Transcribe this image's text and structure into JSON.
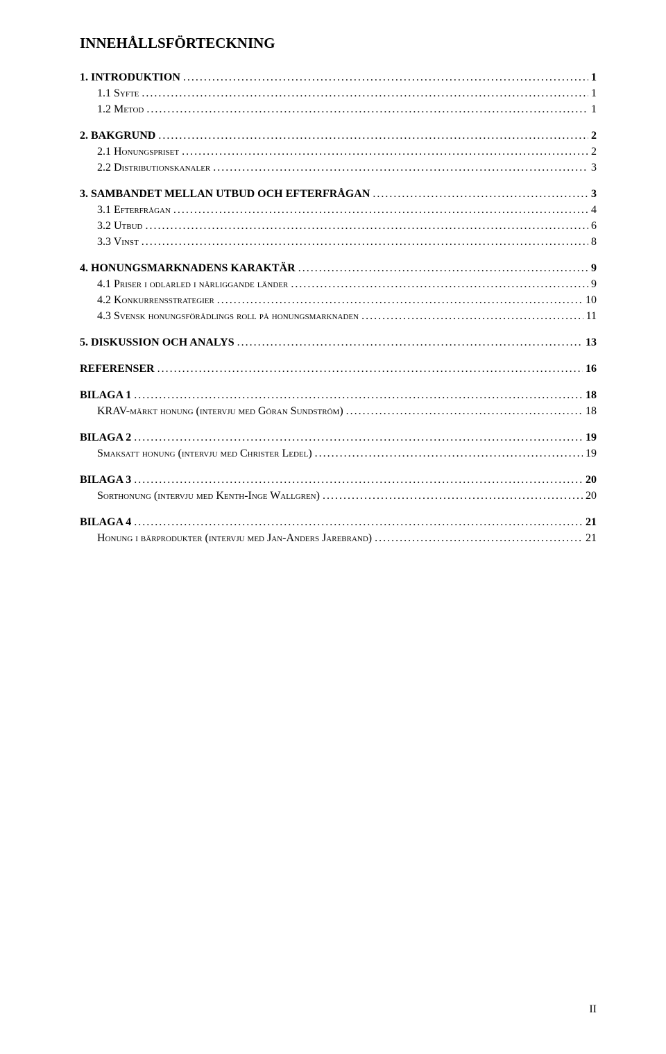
{
  "document": {
    "title": "INNEHÅLLSFÖRTECKNING",
    "page_indicator": "II",
    "colors": {
      "background": "#ffffff",
      "text": "#000000"
    },
    "fonts": {
      "title_size_pt": 16,
      "body_size_pt": 12,
      "family": "Times New Roman"
    }
  },
  "toc": [
    {
      "level": 1,
      "label": "1. INTRODUKTION",
      "page": "1",
      "small_caps": false
    },
    {
      "level": 2,
      "label": "1.1 Syfte",
      "page": "1",
      "small_caps": true
    },
    {
      "level": 2,
      "label": "1.2 Metod",
      "page": "1",
      "small_caps": true
    },
    {
      "level": 1,
      "label": "2. BAKGRUND",
      "page": "2",
      "small_caps": false
    },
    {
      "level": 2,
      "label": "2.1 Honungspriset",
      "page": "2",
      "small_caps": true
    },
    {
      "level": 2,
      "label": "2.2 Distributionskanaler",
      "page": "3",
      "small_caps": true
    },
    {
      "level": 1,
      "label": "3. SAMBANDET MELLAN UTBUD OCH EFTERFRÅGAN",
      "page": "3",
      "small_caps": false
    },
    {
      "level": 2,
      "label": "3.1 Efterfrågan",
      "page": "4",
      "small_caps": true
    },
    {
      "level": 2,
      "label": "3.2 Utbud",
      "page": "6",
      "small_caps": true
    },
    {
      "level": 2,
      "label": "3.3 Vinst",
      "page": "8",
      "small_caps": true
    },
    {
      "level": 1,
      "label": "4. HONUNGSMARKNADENS KARAKTÄR",
      "page": "9",
      "small_caps": false
    },
    {
      "level": 2,
      "label": "4.1 Priser i odlarled i närliggande länder",
      "page": "9",
      "small_caps": true
    },
    {
      "level": 2,
      "label": "4.2 Konkurrensstrategier",
      "page": "10",
      "small_caps": true
    },
    {
      "level": 2,
      "label": "4.3 Svensk honungsförädlings roll på honungsmarknaden",
      "page": "11",
      "small_caps": true
    },
    {
      "level": 1,
      "label": "5. DISKUSSION OCH ANALYS",
      "page": "13",
      "small_caps": false
    },
    {
      "level": 1,
      "label": "REFERENSER",
      "page": "16",
      "small_caps": false
    },
    {
      "level": 1,
      "label": "BILAGA 1",
      "page": "18",
      "small_caps": false
    },
    {
      "level": 2,
      "label": "KRAV-märkt honung (intervju med Göran Sundström)",
      "page": "18",
      "small_caps": true
    },
    {
      "level": 1,
      "label": "BILAGA 2",
      "page": "19",
      "small_caps": false
    },
    {
      "level": 2,
      "label": "Smaksatt honung (intervju med Christer Ledel)",
      "page": "19",
      "small_caps": true
    },
    {
      "level": 1,
      "label": "BILAGA 3",
      "page": "20",
      "small_caps": false
    },
    {
      "level": 2,
      "label": "Sorthonung (intervju med Kenth-Inge Wallgren)",
      "page": "20",
      "small_caps": true
    },
    {
      "level": 1,
      "label": "BILAGA 4",
      "page": "21",
      "small_caps": false
    },
    {
      "level": 2,
      "label": "Honung i bärprodukter (intervju med Jan-Anders Jarebrand)",
      "page": "21",
      "small_caps": true
    }
  ]
}
